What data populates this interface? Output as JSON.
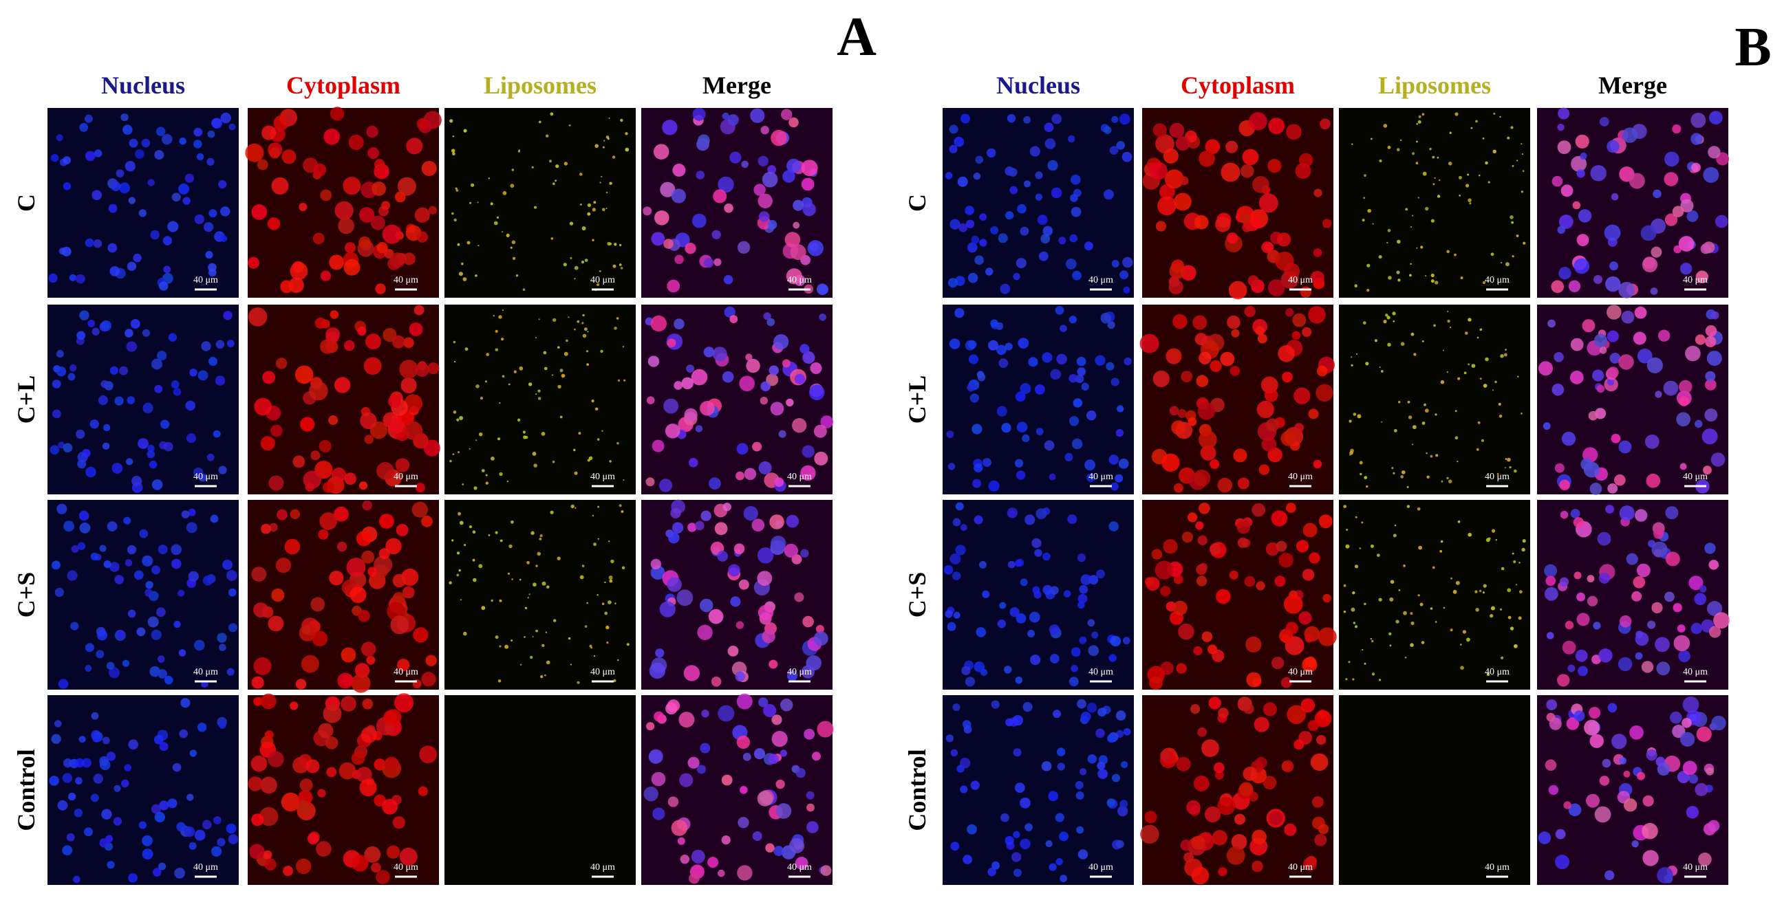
{
  "panels": [
    {
      "label": "A",
      "columns": [
        "Nucleus",
        "Cytoplasm",
        "Liposomes",
        "Merge"
      ],
      "rows": [
        "C",
        "C+L",
        "C+S",
        "Control"
      ]
    },
    {
      "label": "B",
      "columns": [
        "Nucleus",
        "Cytoplasm",
        "Liposomes",
        "Merge"
      ],
      "rows": [
        "C",
        "C+L",
        "C+S",
        "Control"
      ]
    }
  ],
  "scale_bar": "40 μm"
}
